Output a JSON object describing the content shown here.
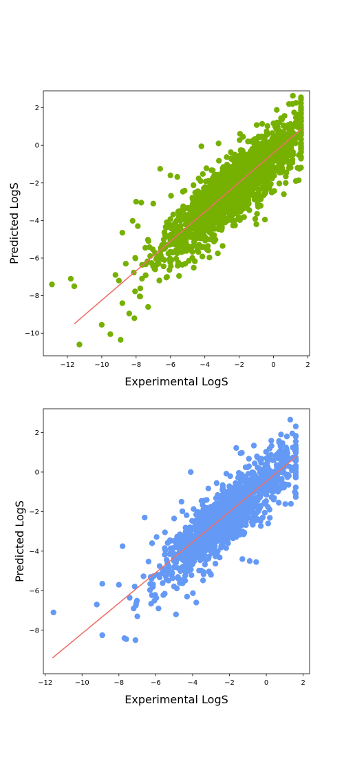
{
  "chart_data": [
    {
      "type": "scatter",
      "xlabel": "Experimental LogS",
      "ylabel": "Predicted LogS",
      "xlim": [
        -13.4,
        2.1
      ],
      "ylim": [
        -11.2,
        2.9
      ],
      "xticks": [
        -12,
        -10,
        -8,
        -6,
        -4,
        -2,
        0,
        2
      ],
      "yticks": [
        -10,
        -8,
        -6,
        -4,
        -2,
        0,
        2
      ],
      "xtick_labels": [
        "−12",
        "−10",
        "−8",
        "−6",
        "−4",
        "−2",
        "0",
        "2"
      ],
      "ytick_labels": [
        "−10",
        "−8",
        "−6",
        "−4",
        "−2",
        "0",
        "2"
      ],
      "grid": false,
      "point_color": "#76b000",
      "line_color": "#f07068",
      "fit_line": {
        "x": [
          -11.6,
          1.6
        ],
        "y": [
          -9.5,
          0.85
        ]
      },
      "outlier_points": [
        {
          "x": -12.9,
          "y": -7.4
        },
        {
          "x": -11.8,
          "y": -7.1
        },
        {
          "x": -11.6,
          "y": -7.5
        },
        {
          "x": -11.3,
          "y": -10.6
        },
        {
          "x": -10.0,
          "y": -9.55
        },
        {
          "x": -9.5,
          "y": -10.05
        },
        {
          "x": -8.9,
          "y": -10.35
        },
        {
          "x": -8.4,
          "y": -8.95
        },
        {
          "x": -8.1,
          "y": -9.2
        },
        {
          "x": -9.2,
          "y": -6.9
        },
        {
          "x": -9.0,
          "y": -7.2
        },
        {
          "x": -8.8,
          "y": -8.4
        },
        {
          "x": -8.8,
          "y": -4.65
        },
        {
          "x": -8.6,
          "y": -6.3
        },
        {
          "x": -8.0,
          "y": -3.0
        },
        {
          "x": -7.7,
          "y": -3.05
        },
        {
          "x": -6.6,
          "y": -1.25
        },
        {
          "x": -7.0,
          "y": -3.1
        },
        {
          "x": -6.0,
          "y": -1.6
        },
        {
          "x": -7.3,
          "y": -8.6
        },
        {
          "x": -5.5,
          "y": -6.95
        },
        {
          "x": -6.2,
          "y": -7.0
        },
        {
          "x": -4.2,
          "y": -0.05
        },
        {
          "x": -3.2,
          "y": 0.1
        },
        {
          "x": 0.9,
          "y": 2.2
        },
        {
          "x": 1.1,
          "y": 2.2
        },
        {
          "x": 1.2,
          "y": 1.75
        },
        {
          "x": 1.6,
          "y": 0.7
        },
        {
          "x": 1.5,
          "y": -1.25
        },
        {
          "x": 1.4,
          "y": -1.2
        },
        {
          "x": -3.8,
          "y": -5.6
        },
        {
          "x": -1.0,
          "y": -4.2
        },
        {
          "x": -0.5,
          "y": -3.95
        },
        {
          "x": -5.7,
          "y": -4.2
        },
        {
          "x": -7.9,
          "y": -4.3
        },
        {
          "x": -4.1,
          "y": -5.4
        },
        {
          "x": -2.9,
          "y": -1.2
        },
        {
          "x": 0.6,
          "y": -2.6
        },
        {
          "x": 1.3,
          "y": -1.9
        }
      ],
      "cloud_model": {
        "n": 1700,
        "slope": 0.78,
        "intercept": -0.5,
        "spread": 0.85,
        "x_center": -2.4,
        "x_sd": 2.0,
        "x_min": -8.2,
        "x_max": 1.6,
        "seed": 11
      }
    },
    {
      "type": "scatter",
      "xlabel": "Experimental LogS",
      "ylabel": "Predicted LogS",
      "xlim": [
        -12.1,
        2.35
      ],
      "ylim": [
        -10.2,
        3.2
      ],
      "xticks": [
        -12,
        -10,
        -8,
        -6,
        -4,
        -2,
        0,
        2
      ],
      "yticks": [
        -8,
        -6,
        -4,
        -2,
        0,
        2
      ],
      "xtick_labels": [
        "−12",
        "−10",
        "−8",
        "−6",
        "−4",
        "−2",
        "0",
        "2"
      ],
      "ytick_labels": [
        "−8",
        "−6",
        "−4",
        "−2",
        "0",
        "2"
      ],
      "grid": false,
      "point_color": "#6499f5",
      "line_color": "#f07068",
      "fit_line": {
        "x": [
          -11.6,
          1.65
        ],
        "y": [
          -9.4,
          0.8
        ]
      },
      "outlier_points": [
        {
          "x": -11.55,
          "y": -7.1
        },
        {
          "x": -9.2,
          "y": -6.7
        },
        {
          "x": -8.9,
          "y": -5.65
        },
        {
          "x": -8.9,
          "y": -8.25
        },
        {
          "x": -8.0,
          "y": -5.7
        },
        {
          "x": -7.8,
          "y": -3.75
        },
        {
          "x": -7.7,
          "y": -8.4
        },
        {
          "x": -7.6,
          "y": -8.45
        },
        {
          "x": -7.1,
          "y": -8.5
        },
        {
          "x": -6.6,
          "y": -2.3
        },
        {
          "x": -5.85,
          "y": -6.9
        },
        {
          "x": -4.9,
          "y": -7.2
        },
        {
          "x": -4.3,
          "y": -6.3
        },
        {
          "x": -3.8,
          "y": -6.6
        },
        {
          "x": -4.1,
          "y": 0.0
        },
        {
          "x": 1.3,
          "y": 2.65
        },
        {
          "x": 0.8,
          "y": 1.9
        },
        {
          "x": 0.7,
          "y": 1.5
        },
        {
          "x": 1.6,
          "y": 0.2
        },
        {
          "x": 1.55,
          "y": -1.0
        },
        {
          "x": -1.4,
          "y": 0.95
        },
        {
          "x": -0.9,
          "y": -4.5
        },
        {
          "x": -0.55,
          "y": -4.55
        },
        {
          "x": -1.3,
          "y": -4.4
        },
        {
          "x": -4.6,
          "y": -1.5
        },
        {
          "x": -5.0,
          "y": -2.35
        },
        {
          "x": -5.5,
          "y": -3.05
        },
        {
          "x": -7.2,
          "y": -6.9
        },
        {
          "x": -7.0,
          "y": -7.3
        },
        {
          "x": 0.1,
          "y": -2.6
        },
        {
          "x": -2.5,
          "y": -3.2
        },
        {
          "x": -3.0,
          "y": -5.2
        },
        {
          "x": -6.2,
          "y": -3.6
        }
      ],
      "cloud_model": {
        "n": 1300,
        "slope": 0.78,
        "intercept": -0.55,
        "spread": 0.75,
        "x_center": -2.2,
        "x_sd": 1.8,
        "x_min": -8.0,
        "x_max": 1.6,
        "seed": 29
      }
    }
  ]
}
